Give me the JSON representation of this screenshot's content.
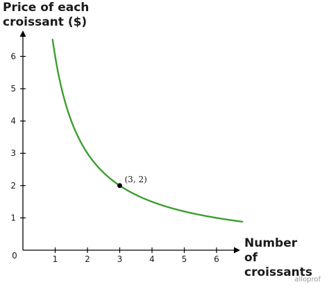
{
  "chart_data": {
    "type": "line",
    "ylabel_lines": [
      "Price of each",
      "croissant ($)"
    ],
    "xlabel_lines": [
      "Number",
      "of croissants"
    ],
    "origin_label": "0",
    "xticks": [
      1,
      2,
      3,
      4,
      5,
      6
    ],
    "yticks": [
      1,
      2,
      3,
      4,
      5,
      6
    ],
    "xlim": [
      0,
      6.9
    ],
    "ylim": [
      0,
      6.8
    ],
    "series": [
      {
        "function": "y = 6 / x",
        "x_start": 0.92,
        "x_end": 6.8,
        "color": "#3a9e2f"
      }
    ],
    "annotation": {
      "x": 3,
      "y": 2,
      "label": "(3, 2)"
    },
    "grid": false,
    "legend": "none"
  },
  "watermark": "alloprof"
}
